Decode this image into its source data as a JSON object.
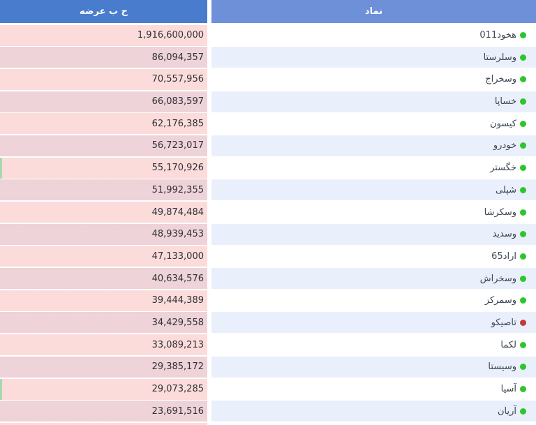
{
  "table": {
    "headers": [
      {
        "id": "supply",
        "label": "ح ب عرضه"
      },
      {
        "id": "symbol",
        "label": "نماد"
      }
    ],
    "rows": [
      {
        "symbol": "هخود011",
        "value": "1,916,600,000",
        "dot": "green",
        "accent": false
      },
      {
        "symbol": "وسلرستا",
        "value": "86,094,357",
        "dot": "green",
        "accent": false
      },
      {
        "symbol": "وسخراج",
        "value": "70,557,956",
        "dot": "green",
        "accent": false
      },
      {
        "symbol": "خساپا",
        "value": "66,083,597",
        "dot": "green",
        "accent": false
      },
      {
        "symbol": "کیسون",
        "value": "62,176,385",
        "dot": "green",
        "accent": false
      },
      {
        "symbol": "خودرو",
        "value": "56,723,017",
        "dot": "green",
        "accent": false
      },
      {
        "symbol": "خگستر",
        "value": "55,170,926",
        "dot": "green",
        "accent": true
      },
      {
        "symbol": "شپلی",
        "value": "51,992,355",
        "dot": "green",
        "accent": false
      },
      {
        "symbol": "وسکرشا",
        "value": "49,874,484",
        "dot": "green",
        "accent": false
      },
      {
        "symbol": "وسدید",
        "value": "48,939,453",
        "dot": "green",
        "accent": false
      },
      {
        "symbol": "اراد65",
        "value": "47,133,000",
        "dot": "green",
        "accent": false
      },
      {
        "symbol": "وسخراش",
        "value": "40,634,576",
        "dot": "green",
        "accent": false
      },
      {
        "symbol": "وسمرکز",
        "value": "39,444,389",
        "dot": "green",
        "accent": false
      },
      {
        "symbol": "تاصیکو",
        "value": "34,429,558",
        "dot": "red",
        "accent": false
      },
      {
        "symbol": "لکما",
        "value": "33,089,213",
        "dot": "green",
        "accent": false
      },
      {
        "symbol": "وسیستا",
        "value": "29,385,172",
        "dot": "green",
        "accent": false
      },
      {
        "symbol": "آسیا",
        "value": "29,073,285",
        "dot": "green",
        "accent": true
      },
      {
        "symbol": "آریان",
        "value": "23,691,516",
        "dot": "green",
        "accent": false
      },
      {
        "symbol": "",
        "value": "",
        "dot": "none",
        "accent": false
      }
    ]
  },
  "colors": {
    "header_left_bg": "#4a7ccd",
    "header_right_bg": "#6d90d8",
    "header_text": "#ffffff",
    "row_bg": "#ffffff",
    "row_alt_bg": "#eaf0fb",
    "supply_cell_overlay": "rgba(245,163,158,0.38)",
    "accent_green": "#abd8ab",
    "dot_green": "#2cc62c",
    "dot_red": "#c23b35",
    "value_text": "#2e3138",
    "symbol_text": "#3b4553"
  }
}
